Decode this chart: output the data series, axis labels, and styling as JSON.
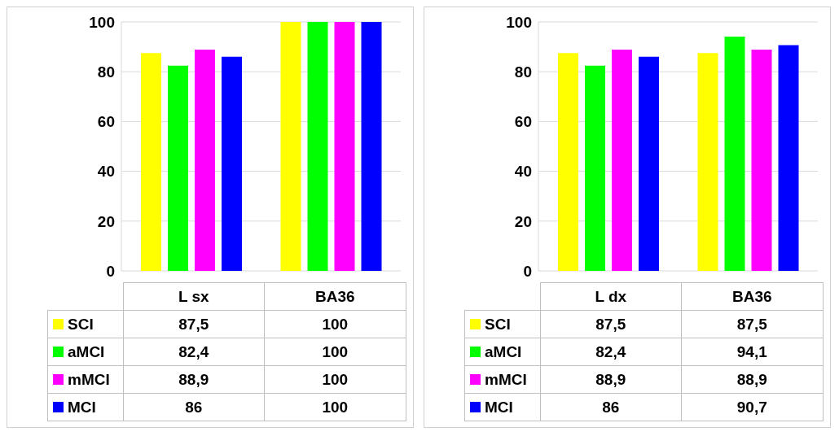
{
  "chart_data": [
    {
      "type": "bar",
      "categories": [
        "L sx",
        "BA36"
      ],
      "ylim": [
        0,
        100
      ],
      "yticks": [
        0,
        20,
        40,
        60,
        80,
        100
      ],
      "grid": "y",
      "legend": "bottom left",
      "series": [
        {
          "name": "SCI",
          "color": "#ffff00",
          "values": [
            87.5,
            100
          ],
          "value_labels": [
            "87,5",
            "100"
          ]
        },
        {
          "name": "aMCI",
          "color": "#00ff00",
          "values": [
            82.4,
            100
          ],
          "value_labels": [
            "82,4",
            "100"
          ]
        },
        {
          "name": "mMCI",
          "color": "#ff00ff",
          "values": [
            88.9,
            100
          ],
          "value_labels": [
            "88,9",
            "100"
          ]
        },
        {
          "name": "MCI",
          "color": "#0000ff",
          "values": [
            86,
            100
          ],
          "value_labels": [
            "86",
            "100"
          ]
        }
      ]
    },
    {
      "type": "bar",
      "categories": [
        "L dx",
        "BA36"
      ],
      "ylim": [
        0,
        100
      ],
      "yticks": [
        0,
        20,
        40,
        60,
        80,
        100
      ],
      "grid": "y",
      "legend": "bottom left",
      "series": [
        {
          "name": "SCI",
          "color": "#ffff00",
          "values": [
            87.5,
            87.5
          ],
          "value_labels": [
            "87,5",
            "87,5"
          ]
        },
        {
          "name": "aMCI",
          "color": "#00ff00",
          "values": [
            82.4,
            94.1
          ],
          "value_labels": [
            "82,4",
            "94,1"
          ]
        },
        {
          "name": "mMCI",
          "color": "#ff00ff",
          "values": [
            88.9,
            88.9
          ],
          "value_labels": [
            "88,9",
            "88,9"
          ]
        },
        {
          "name": "MCI",
          "color": "#0000ff",
          "values": [
            86,
            90.7
          ],
          "value_labels": [
            "86",
            "90,7"
          ]
        }
      ]
    }
  ]
}
